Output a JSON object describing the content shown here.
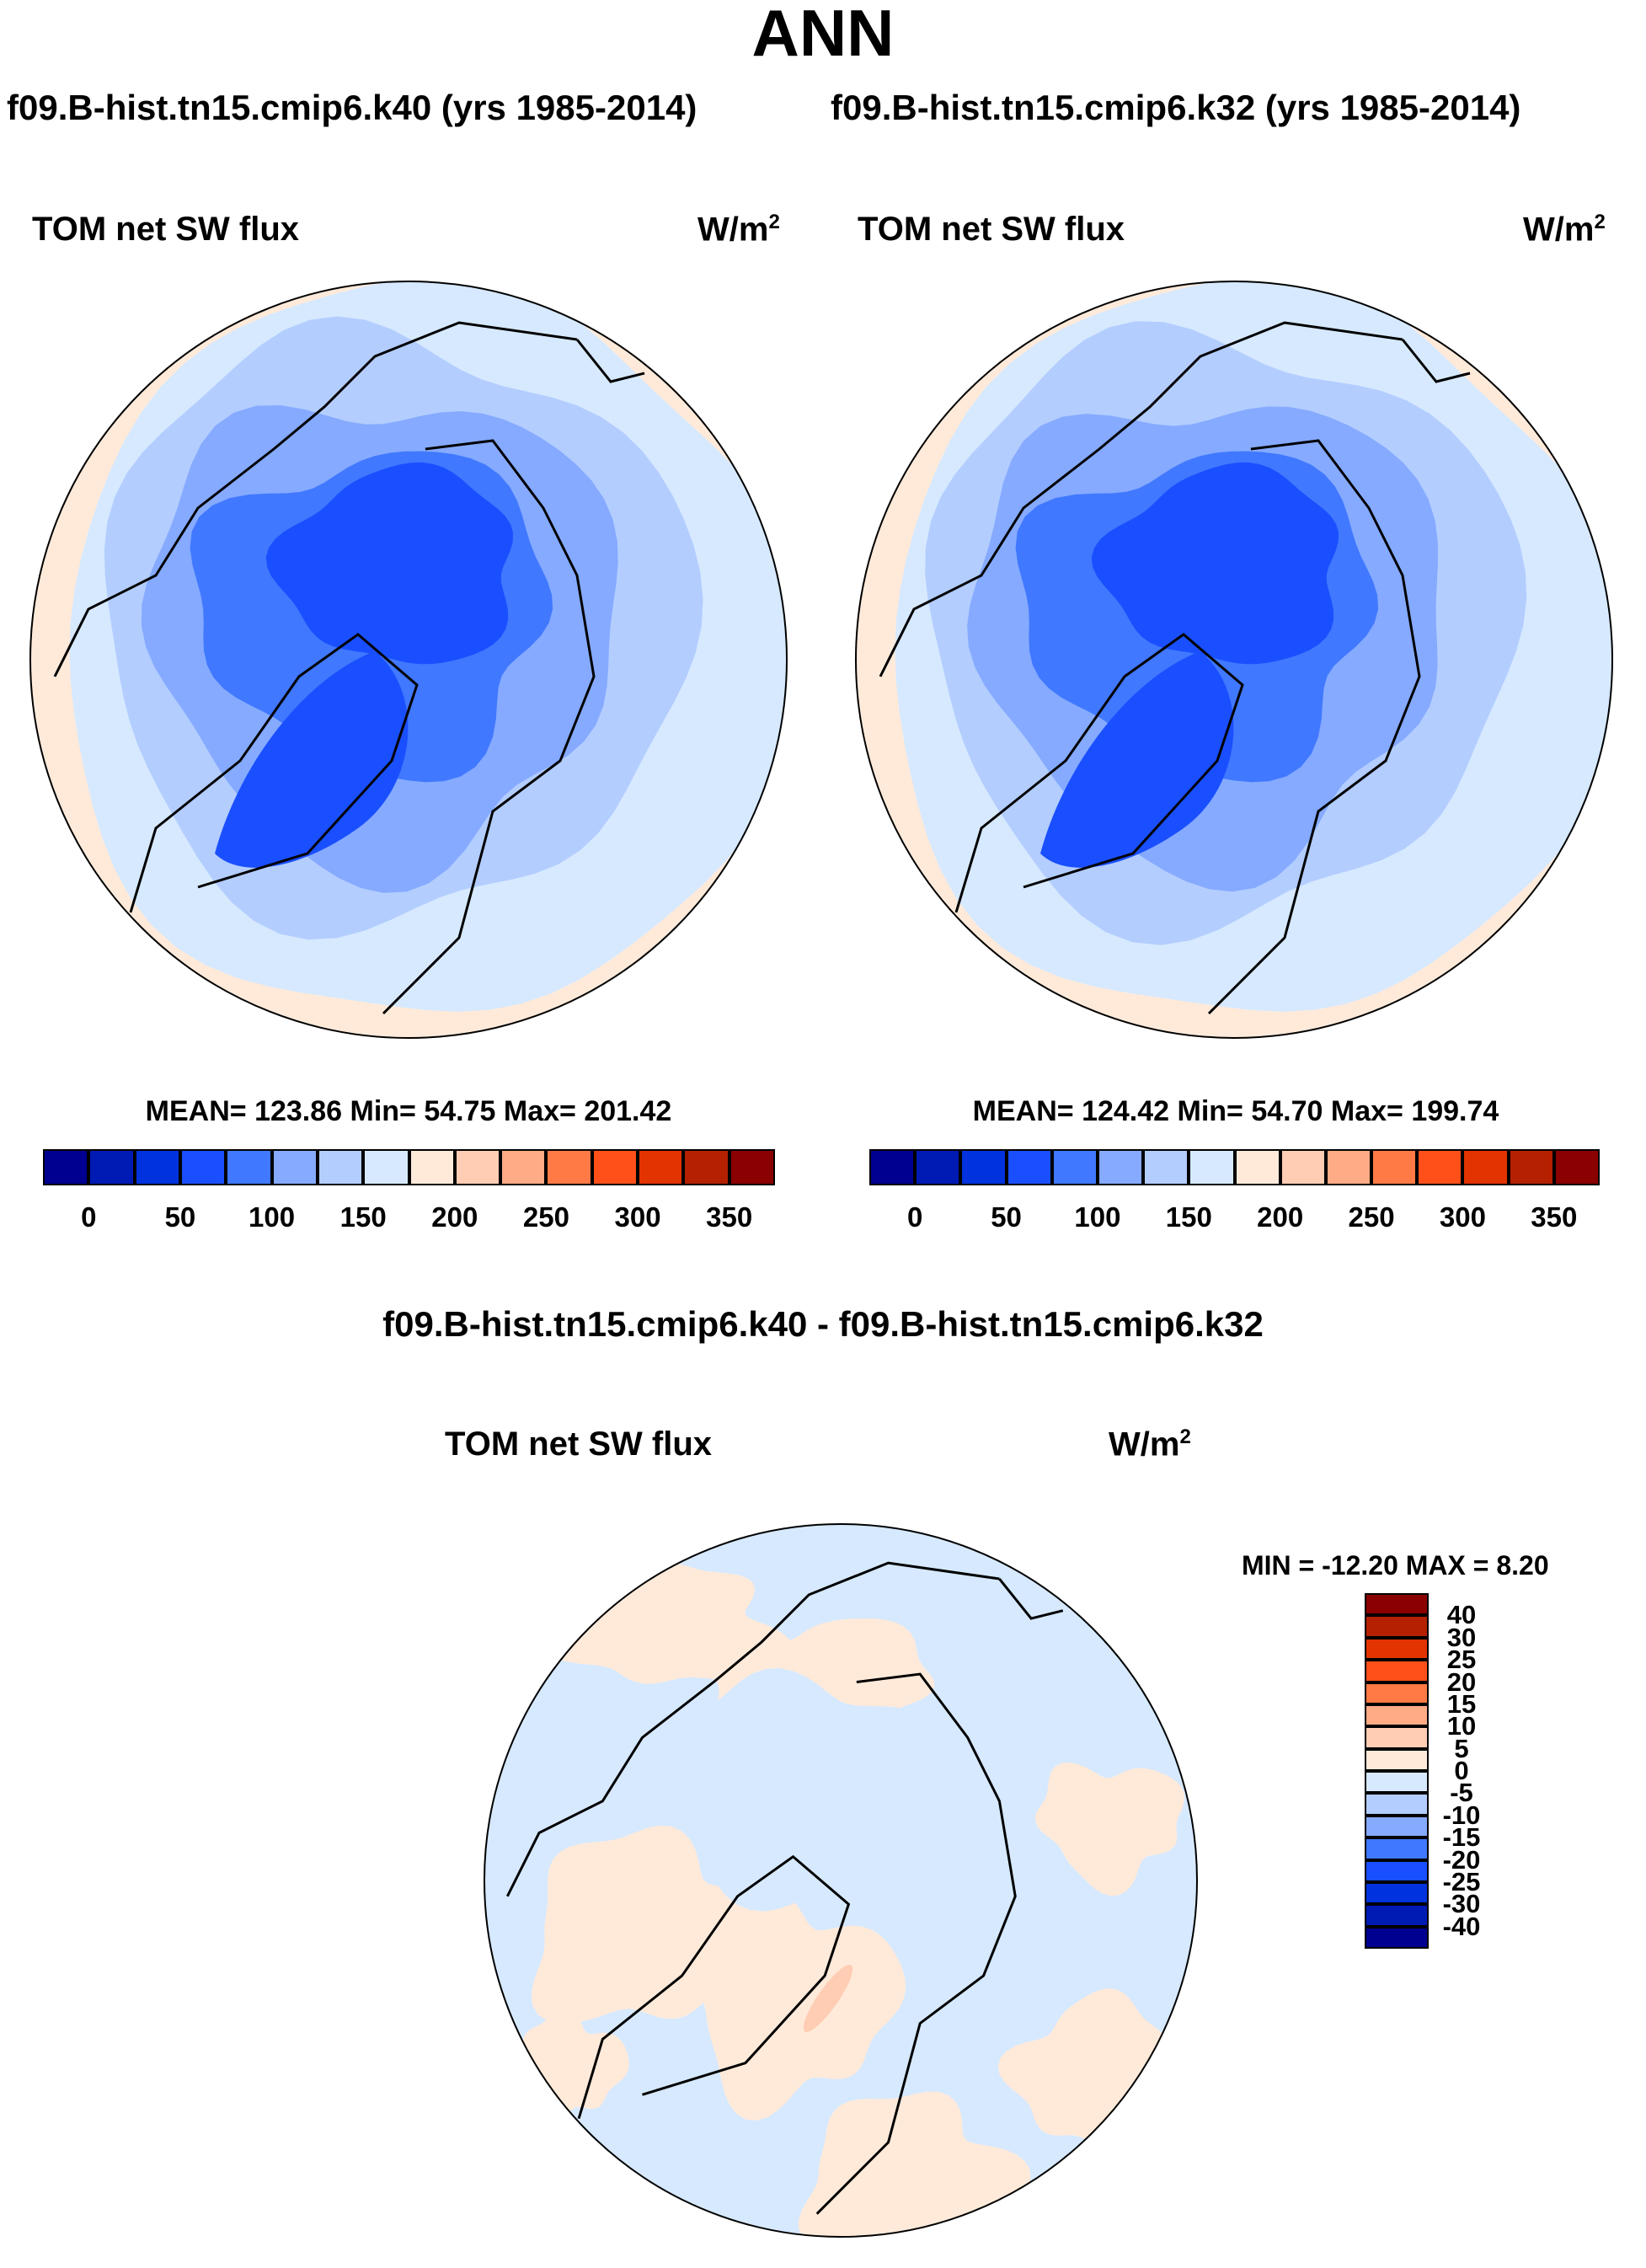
{
  "header": {
    "title": "ANN",
    "left_case": "f09.B-hist.tn15.cmip6.k40 (yrs 1985-2014)",
    "right_case": "f09.B-hist.tn15.cmip6.k32 (yrs 1985-2014)",
    "diff_title": "f09.B-hist.tn15.cmip6.k40 - f09.B-hist.tn15.cmip6.k32"
  },
  "panels": [
    {
      "variable": "TOM net SW flux",
      "units": "W/m",
      "units_sup": "2",
      "stats": "MEAN= 123.86  Min=  54.75  Max= 201.42"
    },
    {
      "variable": "TOM net SW flux",
      "units": "W/m",
      "units_sup": "2",
      "stats": "MEAN= 124.42  Min=  54.70  Max= 199.74"
    },
    {
      "variable": "TOM net SW flux",
      "units": "W/m",
      "units_sup": "2",
      "stats": "MIN = -12.20 MAX =   8.20"
    }
  ],
  "chart_data": [
    {
      "type": "heatmap",
      "projection": "north polar stereographic",
      "title": "TOM net SW flux",
      "case": "f09.B-hist.tn15.cmip6.k40 (yrs 1985-2014)",
      "units": "W/m2",
      "mean": 123.86,
      "min": 54.75,
      "max": 201.42,
      "colorbar_ticks": [
        "0",
        "50",
        "100",
        "150",
        "200",
        "250",
        "300",
        "350"
      ],
      "levels": [
        0,
        25,
        50,
        75,
        100,
        125,
        150,
        175,
        200,
        225,
        250,
        275,
        300,
        325,
        350
      ],
      "colorbar_orientation": "horizontal"
    },
    {
      "type": "heatmap",
      "projection": "north polar stereographic",
      "title": "TOM net SW flux",
      "case": "f09.B-hist.tn15.cmip6.k32 (yrs 1985-2014)",
      "units": "W/m2",
      "mean": 124.42,
      "min": 54.7,
      "max": 199.74,
      "colorbar_ticks": [
        "0",
        "50",
        "100",
        "150",
        "200",
        "250",
        "300",
        "350"
      ],
      "levels": [
        0,
        25,
        50,
        75,
        100,
        125,
        150,
        175,
        200,
        225,
        250,
        275,
        300,
        325,
        350
      ],
      "colorbar_orientation": "horizontal"
    },
    {
      "type": "heatmap",
      "projection": "north polar stereographic",
      "title": "TOM net SW flux",
      "case": "f09.B-hist.tn15.cmip6.k40 - f09.B-hist.tn15.cmip6.k32",
      "units": "W/m2",
      "min": -12.2,
      "max": 8.2,
      "colorbar_ticks": [
        "40",
        "30",
        "25",
        "20",
        "15",
        "10",
        "5",
        "0",
        "-5",
        "-10",
        "-15",
        "-20",
        "-25",
        "-30",
        "-40"
      ],
      "levels": [
        -40,
        -30,
        -25,
        -20,
        -15,
        -10,
        -5,
        0,
        5,
        10,
        15,
        20,
        25,
        30,
        40
      ],
      "colorbar_orientation": "vertical"
    }
  ],
  "colors": [
    "#000090",
    "#001ab4",
    "#0033dd",
    "#1a4fff",
    "#4078ff",
    "#85aaff",
    "#b3cdff",
    "#d6e9ff",
    "#ffeada",
    "#ffcdb3",
    "#ffab85",
    "#ff7a45",
    "#ff501a",
    "#e33300",
    "#b42000",
    "#8b0000"
  ]
}
